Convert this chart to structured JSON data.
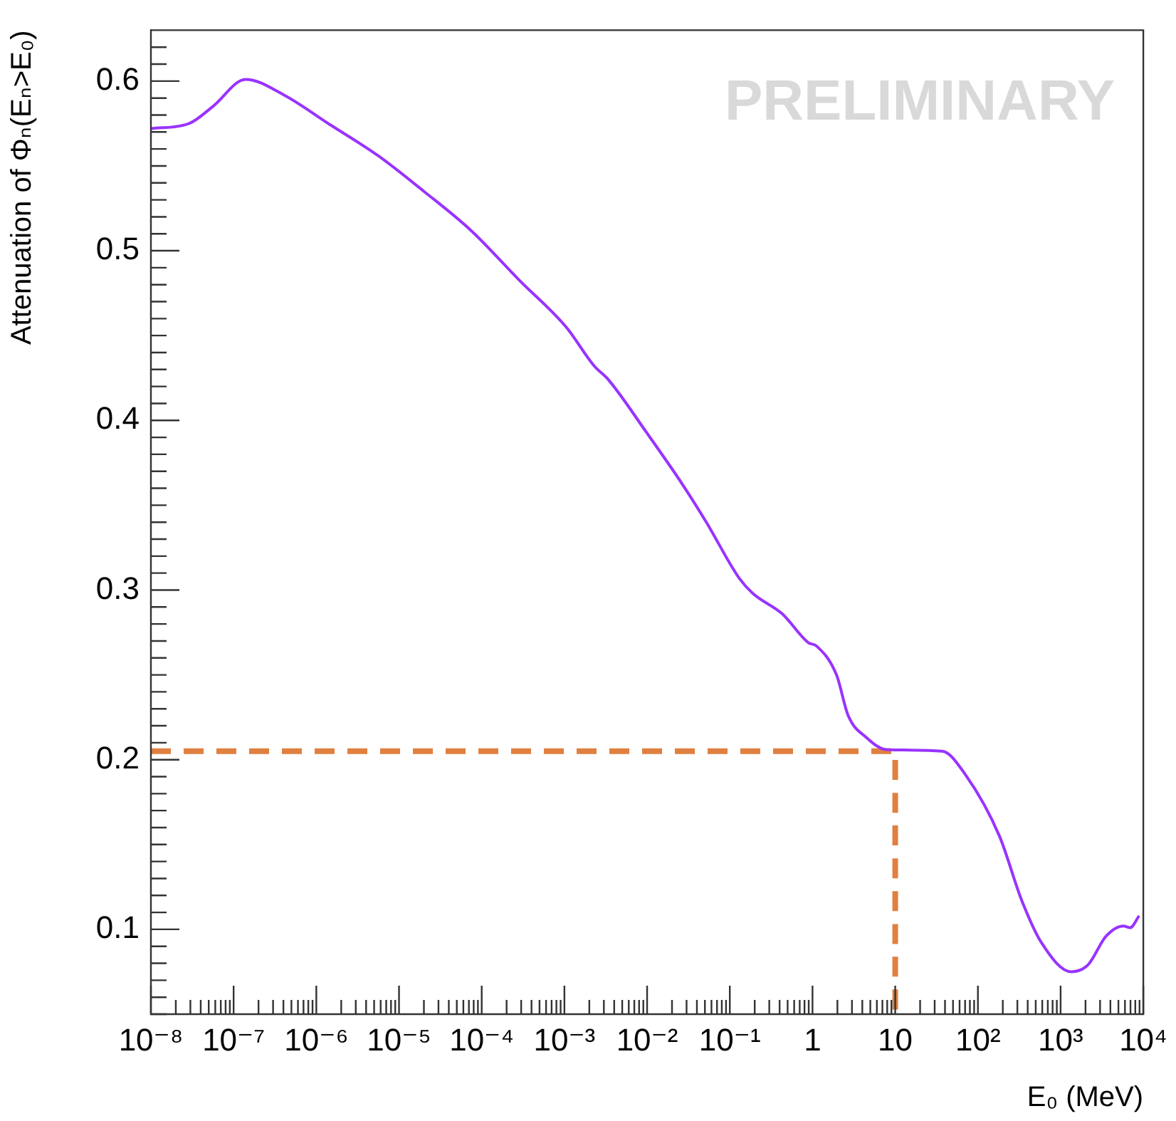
{
  "chart_data": {
    "type": "line",
    "xlabel": "E₀ (MeV)",
    "ylabel": "Attenuation of Φₙ(Eₙ>E₀)",
    "log": "x",
    "grid": false,
    "legend": false,
    "marker": "none",
    "xlim": [
      1e-08,
      10000
    ],
    "ylim": [
      0.05,
      0.63
    ],
    "xticks": [
      {
        "value": 1e-08,
        "label": "10⁻⁸"
      },
      {
        "value": 1e-07,
        "label": "10⁻⁷"
      },
      {
        "value": 1e-06,
        "label": "10⁻⁶"
      },
      {
        "value": 1e-05,
        "label": "10⁻⁵"
      },
      {
        "value": 0.0001,
        "label": "10⁻⁴"
      },
      {
        "value": 0.001,
        "label": "10⁻³"
      },
      {
        "value": 0.01,
        "label": "10⁻²"
      },
      {
        "value": 0.1,
        "label": "10⁻¹"
      },
      1,
      10,
      {
        "value": 100,
        "label": "10²"
      },
      {
        "value": 1000,
        "label": "10³"
      },
      {
        "value": 10000,
        "label": "10⁴"
      }
    ],
    "yticks": [
      0.1,
      0.2,
      0.3,
      0.4,
      0.5,
      0.6
    ],
    "annotations": [
      "PRELIMINARY"
    ],
    "series": [
      {
        "color": "#9933ff",
        "line_style": "solid",
        "x": [
          1e-08,
          2.9e-08,
          5.6e-08,
          1.4e-07,
          4e-07,
          1.5e-06,
          5.6e-06,
          2e-05,
          7.4e-05,
          0.00028,
          0.00105,
          0.0023,
          0.0034,
          0.0098,
          0.027,
          0.052,
          0.13,
          0.19,
          0.43,
          0.89,
          1.12,
          1.95,
          2.7,
          4.5,
          7.8,
          37,
          71,
          182,
          339,
          589,
          1350,
          2140,
          3550,
          5750,
          6920,
          8900
        ],
        "values": [
          0.572,
          0.575,
          0.585,
          0.601,
          0.592,
          0.574,
          0.556,
          0.535,
          0.512,
          0.483,
          0.455,
          0.432,
          0.424,
          0.393,
          0.362,
          0.34,
          0.307,
          0.298,
          0.286,
          0.269,
          0.267,
          0.25,
          0.226,
          0.213,
          0.206,
          0.205,
          0.191,
          0.155,
          0.117,
          0.092,
          0.075,
          0.079,
          0.096,
          0.102,
          0.101,
          0.108
        ]
      },
      {
        "color": "#e08040",
        "line_style": "dashed",
        "x": [
          1e-08,
          10,
          10
        ],
        "values": [
          0.205,
          0.205,
          0.05
        ]
      }
    ]
  }
}
